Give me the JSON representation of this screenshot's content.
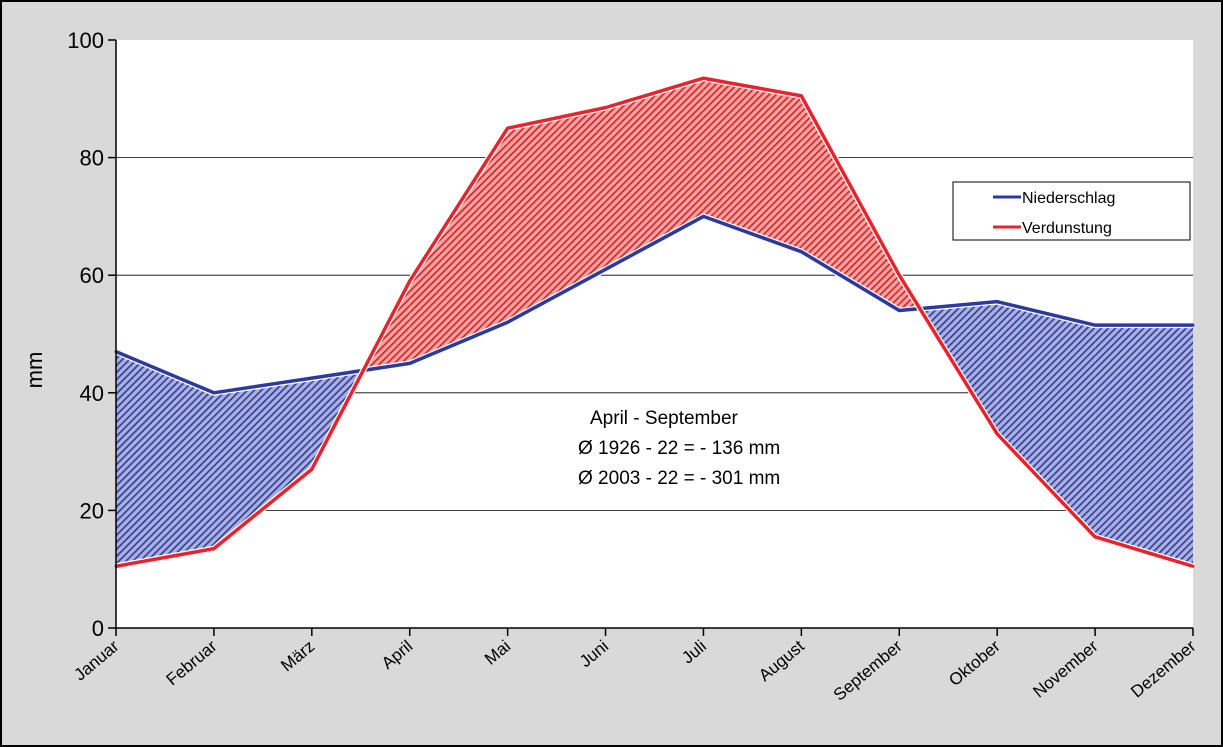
{
  "chart_data": {
    "type": "line",
    "title": "",
    "xlabel": "",
    "ylabel": "mm",
    "ylim": [
      0,
      100
    ],
    "yticks": [
      "0",
      "20",
      "40",
      "60",
      "80",
      "100"
    ],
    "grid": true,
    "legend_position": "right",
    "categories": [
      "Januar",
      "Februar",
      "März",
      "April",
      "Mai",
      "Juni",
      "Juli",
      "August",
      "September",
      "Oktober",
      "November",
      "Dezember"
    ],
    "series": [
      {
        "name": "Niederschlag",
        "color": "#2b3a9e",
        "values": [
          47,
          40,
          42.5,
          45,
          52,
          61,
          70,
          64,
          54,
          55.5,
          51.5,
          51.5
        ]
      },
      {
        "name": "Verdunstung",
        "color": "#e8232b",
        "values": [
          10.5,
          13.5,
          27,
          59,
          85,
          88.5,
          93.5,
          90.5,
          60,
          33,
          15.5,
          10.5
        ]
      }
    ],
    "annotations": [
      "April - September",
      "Ø  1926 - 22 = - 136 mm",
      "Ø  2003 - 22 = - 301 mm"
    ]
  },
  "colors": {
    "deficit_fill": "#e03434",
    "surplus_fill": "#3a4ab0",
    "plot_background": "#ffffff",
    "frame_background": "#d9d9d9"
  }
}
